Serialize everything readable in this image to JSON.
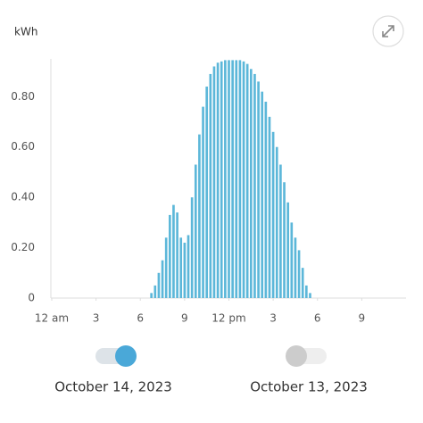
{
  "chart_data": {
    "type": "bar",
    "y_label": "kWh",
    "color": "#5cb7d9",
    "x": [
      6.75,
      7,
      7.25,
      7.5,
      7.75,
      8,
      8.25,
      8.5,
      8.75,
      9,
      9.25,
      9.5,
      9.75,
      10,
      10.25,
      10.5,
      10.75,
      11,
      11.25,
      11.5,
      11.75,
      12,
      12.25,
      12.5,
      12.75,
      13,
      13.25,
      13.5,
      13.75,
      14,
      14.25,
      14.5,
      14.75,
      15,
      15.25,
      15.5,
      15.75,
      16,
      16.25,
      16.5,
      16.75,
      17,
      17.25,
      17.5
    ],
    "values": [
      0.02,
      0.05,
      0.1,
      0.15,
      0.24,
      0.33,
      0.37,
      0.34,
      0.24,
      0.22,
      0.25,
      0.4,
      0.53,
      0.65,
      0.76,
      0.84,
      0.89,
      0.92,
      0.935,
      0.94,
      0.945,
      0.945,
      0.945,
      0.945,
      0.945,
      0.94,
      0.93,
      0.91,
      0.89,
      0.86,
      0.82,
      0.78,
      0.72,
      0.66,
      0.6,
      0.53,
      0.46,
      0.38,
      0.3,
      0.24,
      0.19,
      0.12,
      0.05,
      0.02
    ],
    "xlim": [
      0,
      24
    ],
    "xticks": [
      {
        "value": 0,
        "label": "12 am"
      },
      3,
      6,
      9,
      {
        "value": 12,
        "label": "12 pm"
      },
      {
        "value": 15,
        "label": "3"
      },
      {
        "value": 18,
        "label": "6"
      },
      {
        "value": 21,
        "label": "9"
      }
    ],
    "ylim": [
      0,
      0.95
    ],
    "yticks": [
      0,
      {
        "value": 0.2,
        "label": "0.20"
      },
      {
        "value": 0.4,
        "label": "0.40"
      },
      {
        "value": 0.6,
        "label": "0.60"
      },
      {
        "value": 0.8,
        "label": "0.80"
      }
    ],
    "grid": false
  },
  "toggles": [
    {
      "label": "October 14, 2023",
      "on": true,
      "color": "#4aa8d8"
    },
    {
      "label": "October 13, 2023",
      "on": false,
      "color": "#cccccc"
    }
  ]
}
